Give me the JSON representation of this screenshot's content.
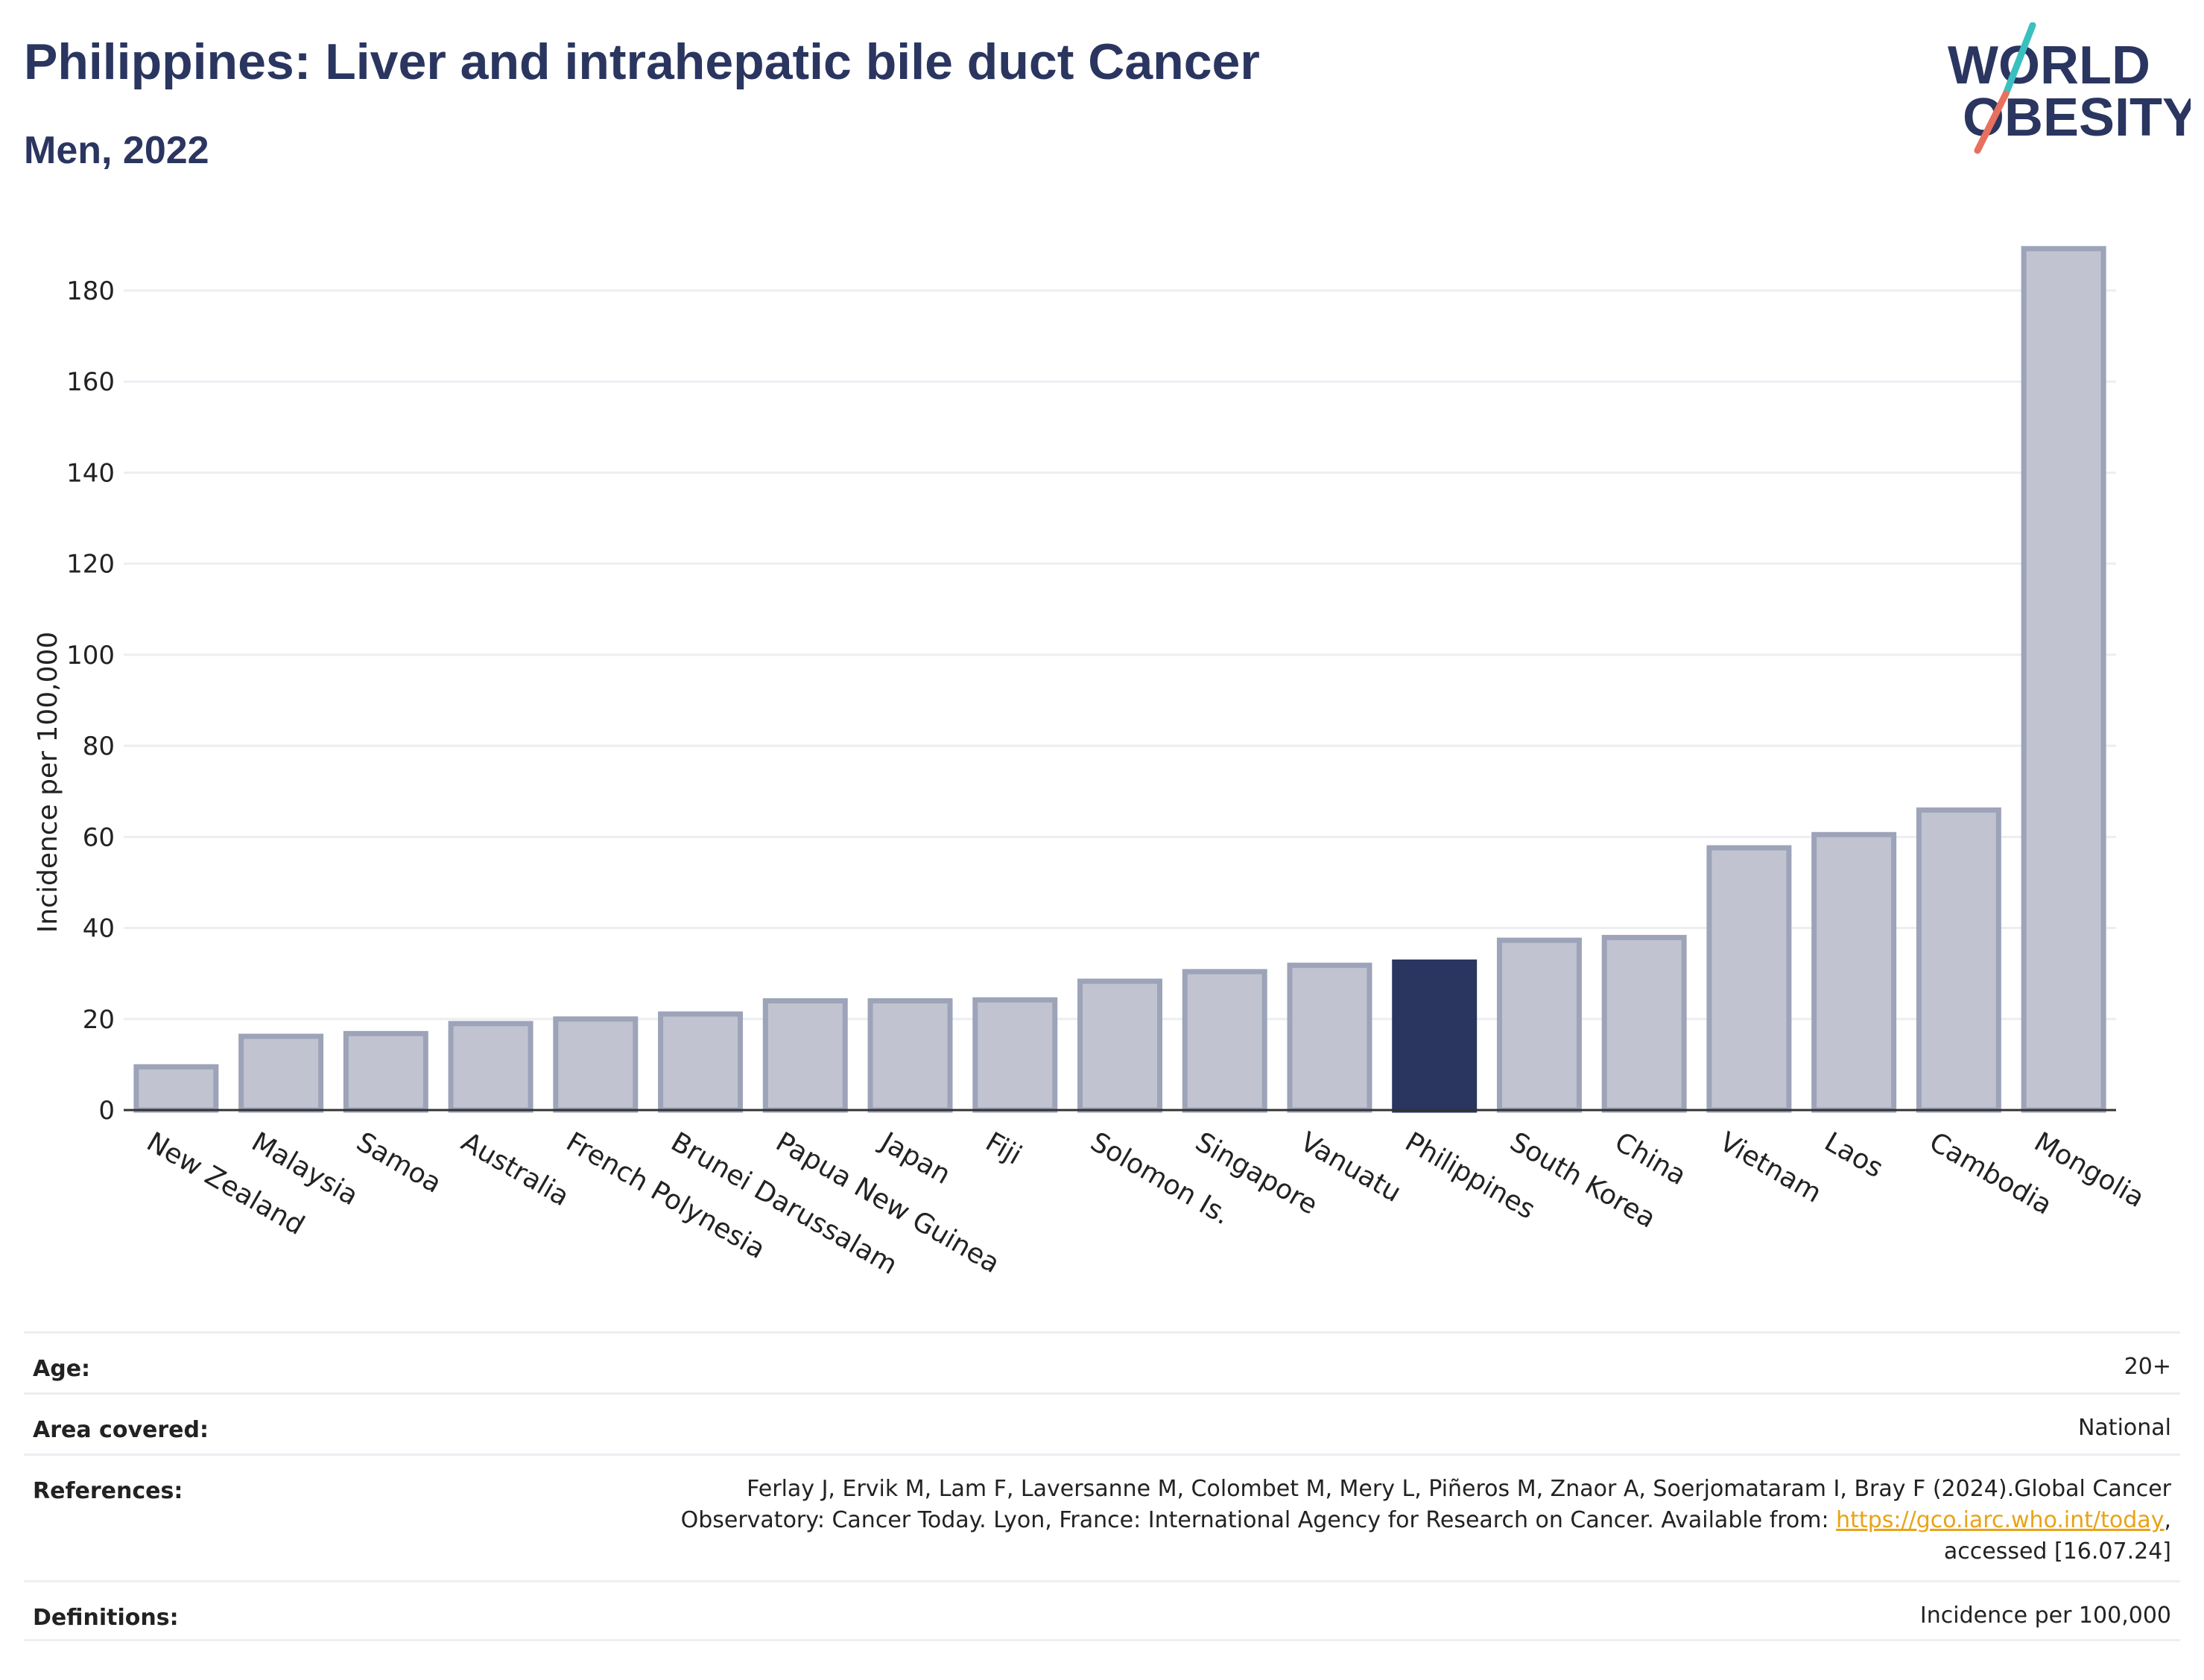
{
  "header": {
    "title": "Philippines: Liver and intrahepatic bile duct Cancer",
    "subtitle": "Men, 2022"
  },
  "logo": {
    "line1": "WORLD",
    "line2": "OBESITY",
    "text_color": "#2a3560",
    "slash_top_color": "#3bbfbf",
    "slash_bottom_color": "#e8705e"
  },
  "colors": {
    "bar_default": "#c1c4d0",
    "bar_border": "#9da3b8",
    "bar_highlight": "#2a3560",
    "grid": "#eceef2",
    "axis_text": "#222222"
  },
  "chart_data": {
    "type": "bar",
    "ylabel": "Incidence per 100,000",
    "ylim": [
      0,
      190
    ],
    "yticks": [
      0,
      20,
      40,
      60,
      80,
      100,
      120,
      140,
      160,
      180
    ],
    "grid": true,
    "highlight": "Philippines",
    "categories": [
      "New Zealand",
      "Malaysia",
      "Samoa",
      "Australia",
      "French Polynesia",
      "Brunei Darussalam",
      "Papua New Guinea",
      "Japan",
      "Fiji",
      "Solomon Is.",
      "Singapore",
      "Vanuatu",
      "Philippines",
      "South Korea",
      "China",
      "Vietnam",
      "Laos",
      "Cambodia",
      "Mongolia"
    ],
    "values": [
      9.5,
      16.2,
      16.8,
      19.0,
      20.0,
      21.1,
      24.0,
      24.0,
      24.2,
      28.3,
      30.4,
      31.8,
      32.5,
      37.3,
      37.9,
      57.6,
      60.5,
      65.9,
      189.2
    ]
  },
  "meta": {
    "age_label": "Age:",
    "age_value": "20+",
    "area_label": "Area covered:",
    "area_value": "National",
    "references_label": "References:",
    "references_line1": "Ferlay J, Ervik M, Lam F, Laversanne M, Colombet M, Mery L, Piñeros M, Znaor A, Soerjomataram I, Bray F (2024).Global Cancer",
    "references_line2": "Observatory: Cancer Today. Lyon, France: International Agency for Research on Cancer. Available from:",
    "references_link": "https://gco.iarc.who.int/today",
    "references_line3": "accessed [16.07.24]",
    "definitions_label": "Definitions:",
    "definitions_value": "Incidence per 100,000"
  }
}
